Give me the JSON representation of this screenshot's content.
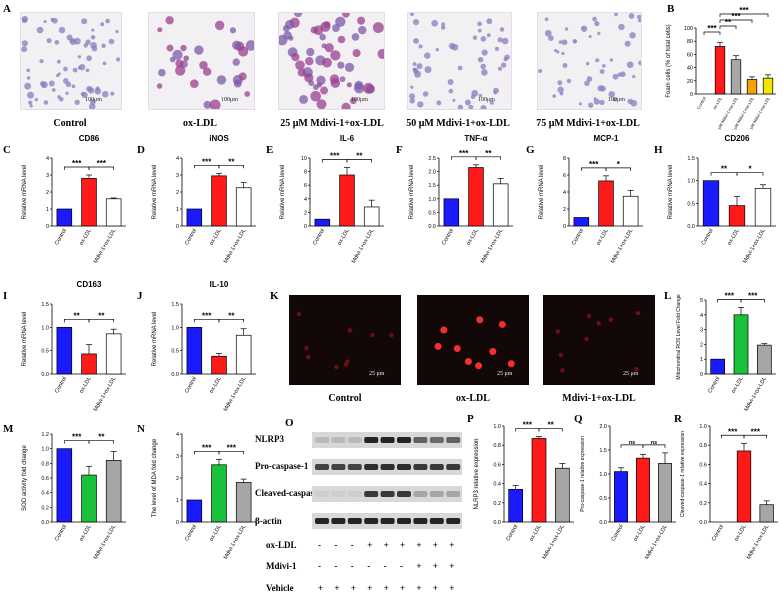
{
  "panel_letters": {
    "A": "A",
    "B": "B",
    "C": "C",
    "D": "D",
    "E": "E",
    "F": "F",
    "G": "G",
    "H": "H",
    "I": "I",
    "J": "J",
    "K": "K",
    "L": "L",
    "M": "M",
    "N": "N",
    "O": "O",
    "P": "P",
    "Q": "Q",
    "R": "R"
  },
  "micrographs": {
    "scale_label": "100μm",
    "captions": [
      "Control",
      "ox-LDL",
      "25 μM Mdivi-1+ox-LDL",
      "50 μM Mdivi-1+ox-LDL",
      "75 μM Mdivi-1+ox-LDL"
    ]
  },
  "fluorescence": {
    "scale_label": "25 μm",
    "captions": [
      "Control",
      "ox-LDL",
      "Mdivi-1+ox-LDL"
    ]
  },
  "western": {
    "bands": [
      "NLRP3",
      "Pro-caspase-1",
      "Cleaved-caspase-1",
      "β-actin"
    ],
    "treatment_rows": [
      {
        "label": "ox-LDL",
        "signs": [
          "-",
          "-",
          "-",
          "+",
          "+",
          "+",
          "+",
          "+",
          "+"
        ]
      },
      {
        "label": "Mdivi-1",
        "signs": [
          "-",
          "-",
          "-",
          "-",
          "-",
          "-",
          "+",
          "+",
          "+"
        ]
      },
      {
        "label": "Vehicle",
        "signs": [
          "+",
          "+",
          "+",
          "+",
          "+",
          "+",
          "+",
          "+",
          "+"
        ]
      }
    ]
  },
  "colors": {
    "blue": "#1a1aff",
    "red": "#ff1a1a",
    "gray": "#a6a6a6",
    "white": "#ffffff",
    "green": "#19c23a",
    "orange": "#f4a300",
    "yellow": "#f2e600",
    "darkred": "#cc2222"
  },
  "chart_data": [
    {
      "id": "B",
      "type": "bar",
      "ylabel": "Foam cells (% of total cells)",
      "ylim": [
        0,
        100
      ],
      "yticks": [
        "0",
        "20",
        "40",
        "60",
        "80",
        "100"
      ],
      "categories": [
        "Control",
        "ox-LDL",
        "25 μM Mdivi-1+ox-LDL",
        "50 μM Mdivi-1+ox-LDL",
        "75 μM Mdivi-1+ox-LDL"
      ],
      "values": [
        0,
        72,
        52,
        22,
        24
      ],
      "errors": [
        0,
        6,
        6,
        4,
        5
      ],
      "colors": [
        "#1a1aff",
        "#ff1a1a",
        "#a6a6a6",
        "#f4a300",
        "#f2e600"
      ],
      "sig": [
        {
          "a": 1,
          "b": 4,
          "t": "***"
        },
        {
          "a": 1,
          "b": 3,
          "t": "***"
        },
        {
          "a": 1,
          "b": 2,
          "t": "**"
        },
        {
          "a": 0,
          "b": 1,
          "t": "***"
        }
      ]
    },
    {
      "id": "C",
      "type": "bar",
      "title": "CD86",
      "ylabel": "Relative mRNA level",
      "ylim": [
        0,
        4
      ],
      "yticks": [
        "0",
        "1",
        "2",
        "3",
        "4"
      ],
      "categories": [
        "Control",
        "ox-LDL",
        "Mdivi-1+ox-LDL"
      ],
      "values": [
        1,
        2.8,
        1.6
      ],
      "errors": [
        0,
        0.2,
        0.05
      ],
      "colors": [
        "#1a1aff",
        "#ff1a1a",
        "#ffffff"
      ],
      "sig": [
        {
          "a": 0,
          "b": 1,
          "t": "***"
        },
        {
          "a": 1,
          "b": 2,
          "t": "***"
        }
      ]
    },
    {
      "id": "D",
      "type": "bar",
      "title": "iNOS",
      "ylabel": "Relative mRNA level",
      "ylim": [
        0,
        4
      ],
      "yticks": [
        "0",
        "1",
        "2",
        "3",
        "4"
      ],
      "categories": [
        "Control",
        "ox-LDL",
        "Mdivi-1+ox-LDL"
      ],
      "values": [
        1,
        2.95,
        2.25
      ],
      "errors": [
        0,
        0.15,
        0.3
      ],
      "colors": [
        "#1a1aff",
        "#ff1a1a",
        "#ffffff"
      ],
      "sig": [
        {
          "a": 0,
          "b": 1,
          "t": "***"
        },
        {
          "a": 1,
          "b": 2,
          "t": "**"
        }
      ]
    },
    {
      "id": "E",
      "type": "bar",
      "title": "IL-6",
      "ylabel": "Relative mRNA level",
      "ylim": [
        0,
        10
      ],
      "yticks": [
        "0",
        "2",
        "4",
        "6",
        "8",
        "10"
      ],
      "categories": [
        "Control",
        "ox-LDL",
        "Mdivi-1+ox-LDL"
      ],
      "values": [
        1,
        7.5,
        2.8
      ],
      "errors": [
        0,
        1.1,
        1.0
      ],
      "colors": [
        "#1a1aff",
        "#ff1a1a",
        "#ffffff"
      ],
      "sig": [
        {
          "a": 0,
          "b": 1,
          "t": "***"
        },
        {
          "a": 1,
          "b": 2,
          "t": "**"
        }
      ]
    },
    {
      "id": "F",
      "type": "bar",
      "title": "TNF-α",
      "ylabel": "Relative mRNA level",
      "ylim": [
        0,
        2.5
      ],
      "yticks": [
        "0.0",
        "0.5",
        "1.0",
        "1.5",
        "2.0",
        "2.5"
      ],
      "categories": [
        "Control",
        "ox-LDL",
        "Mdivi-1+ox-LDL"
      ],
      "values": [
        1,
        2.15,
        1.55
      ],
      "errors": [
        0,
        0.1,
        0.2
      ],
      "colors": [
        "#1a1aff",
        "#ff1a1a",
        "#ffffff"
      ],
      "sig": [
        {
          "a": 0,
          "b": 1,
          "t": "***"
        },
        {
          "a": 1,
          "b": 2,
          "t": "**"
        }
      ]
    },
    {
      "id": "G",
      "type": "bar",
      "title": "MCP-1",
      "ylabel": "Relative mRNA level",
      "ylim": [
        0,
        8
      ],
      "yticks": [
        "0",
        "2",
        "4",
        "6",
        "8"
      ],
      "categories": [
        "Control",
        "ox-LDL",
        "Mdivi-1+ox-LDL"
      ],
      "values": [
        1,
        5.3,
        3.5
      ],
      "errors": [
        0,
        0.6,
        0.7
      ],
      "colors": [
        "#1a1aff",
        "#ff1a1a",
        "#ffffff"
      ],
      "sig": [
        {
          "a": 0,
          "b": 1,
          "t": "***"
        },
        {
          "a": 1,
          "b": 2,
          "t": "*"
        }
      ]
    },
    {
      "id": "H",
      "type": "bar",
      "title": "CD206",
      "ylabel": "Relative mRNA level",
      "ylim": [
        0,
        1.5
      ],
      "yticks": [
        "0.0",
        "0.5",
        "1.0",
        "1.5"
      ],
      "categories": [
        "Control",
        "ox-LDL",
        "Mdivi-1+ox-LDL"
      ],
      "values": [
        1,
        0.45,
        0.83
      ],
      "errors": [
        0,
        0.2,
        0.08
      ],
      "colors": [
        "#1a1aff",
        "#ff1a1a",
        "#ffffff"
      ],
      "sig": [
        {
          "a": 0,
          "b": 1,
          "t": "**"
        },
        {
          "a": 1,
          "b": 2,
          "t": "*"
        }
      ]
    },
    {
      "id": "I",
      "type": "bar",
      "title": "CD163",
      "ylabel": "Relative mRNA level",
      "ylim": [
        0,
        1.5
      ],
      "yticks": [
        "0.0",
        "0.5",
        "1.0",
        "1.5"
      ],
      "categories": [
        "Control",
        "ox-LDL",
        "Mdivi-1+ox-LDL"
      ],
      "values": [
        1,
        0.43,
        0.86
      ],
      "errors": [
        0,
        0.2,
        0.1
      ],
      "colors": [
        "#1a1aff",
        "#ff1a1a",
        "#ffffff"
      ],
      "sig": [
        {
          "a": 0,
          "b": 1,
          "t": "**"
        },
        {
          "a": 1,
          "b": 2,
          "t": "**"
        }
      ]
    },
    {
      "id": "J",
      "type": "bar",
      "title": "IL-10",
      "ylabel": "Relative mRNA level",
      "ylim": [
        0,
        1.5
      ],
      "yticks": [
        "0.0",
        "0.5",
        "1.0",
        "1.5"
      ],
      "categories": [
        "Control",
        "ox-LDL",
        "Mdivi-1+ox-LDL"
      ],
      "values": [
        1,
        0.38,
        0.83
      ],
      "errors": [
        0,
        0.06,
        0.14
      ],
      "colors": [
        "#1a1aff",
        "#ff1a1a",
        "#ffffff"
      ],
      "sig": [
        {
          "a": 0,
          "b": 1,
          "t": "***"
        },
        {
          "a": 1,
          "b": 2,
          "t": "**"
        }
      ]
    },
    {
      "id": "L",
      "type": "bar",
      "ylabel": "Mitochondrial ROS Level Fold Change",
      "ylim": [
        0,
        5
      ],
      "yticks": [
        "0",
        "1",
        "2",
        "3",
        "4",
        "5"
      ],
      "categories": [
        "Control",
        "ox-LDL",
        "Mdivi-1+ox-LDL"
      ],
      "values": [
        1,
        4.0,
        1.95
      ],
      "errors": [
        0,
        0.5,
        0.1
      ],
      "colors": [
        "#1a1aff",
        "#19c23a",
        "#a6a6a6"
      ],
      "sig": [
        {
          "a": 0,
          "b": 1,
          "t": "***"
        },
        {
          "a": 1,
          "b": 2,
          "t": "***"
        }
      ]
    },
    {
      "id": "M",
      "type": "bar",
      "ylabel": "SOD activity fold change",
      "ylim": [
        0,
        1.2
      ],
      "yticks": [
        "0.0",
        "0.2",
        "0.4",
        "0.6",
        "0.8",
        "1.0",
        "1.2"
      ],
      "categories": [
        "Control",
        "ox-LDL",
        "Mdivi-1+ox-LDL"
      ],
      "values": [
        1,
        0.64,
        0.84
      ],
      "errors": [
        0,
        0.12,
        0.12
      ],
      "colors": [
        "#1a1aff",
        "#19c23a",
        "#a6a6a6"
      ],
      "sig": [
        {
          "a": 0,
          "b": 1,
          "t": "***"
        },
        {
          "a": 1,
          "b": 2,
          "t": "**"
        }
      ]
    },
    {
      "id": "N",
      "type": "bar",
      "ylabel": "The level of MDA fold change",
      "ylim": [
        0,
        4
      ],
      "yticks": [
        "0",
        "1",
        "2",
        "3",
        "4"
      ],
      "categories": [
        "Control",
        "ox-LDL",
        "Mdivi-1+ox-LDL"
      ],
      "values": [
        1,
        2.6,
        1.8
      ],
      "errors": [
        0,
        0.25,
        0.15
      ],
      "colors": [
        "#1a1aff",
        "#19c23a",
        "#a6a6a6"
      ],
      "sig": [
        {
          "a": 0,
          "b": 1,
          "t": "***"
        },
        {
          "a": 1,
          "b": 2,
          "t": "***"
        }
      ]
    },
    {
      "id": "P",
      "type": "bar",
      "ylabel": "NLRP3 relative expression",
      "ylim": [
        0,
        1.0
      ],
      "yticks": [
        "0.0",
        "0.2",
        "0.4",
        "0.6",
        "0.8",
        "1.0"
      ],
      "categories": [
        "Control",
        "ox-LDL",
        "Mdivi-1+ox-LDL"
      ],
      "values": [
        0.34,
        0.87,
        0.56
      ],
      "errors": [
        0.04,
        0.02,
        0.05
      ],
      "colors": [
        "#1a1aff",
        "#ff1a1a",
        "#a6a6a6"
      ],
      "sig": [
        {
          "a": 0,
          "b": 1,
          "t": "***"
        },
        {
          "a": 1,
          "b": 2,
          "t": "**"
        }
      ]
    },
    {
      "id": "Q",
      "type": "bar",
      "ylabel": "Pro-caspase-1 relative expression",
      "ylim": [
        0,
        2.0
      ],
      "yticks": [
        "0.0",
        "0.5",
        "1.0",
        "1.5",
        "2.0"
      ],
      "categories": [
        "Control",
        "ox-LDL",
        "Mdivi-1+ox-LDL"
      ],
      "values": [
        1.05,
        1.33,
        1.22
      ],
      "errors": [
        0.08,
        0.08,
        0.22
      ],
      "colors": [
        "#1a1aff",
        "#ff1a1a",
        "#a6a6a6"
      ],
      "sig": [
        {
          "a": 0,
          "b": 1,
          "t": "ns"
        },
        {
          "a": 1,
          "b": 2,
          "t": "ns"
        }
      ]
    },
    {
      "id": "R",
      "type": "bar",
      "ylabel": "Cleaved-caspase-1 relative expression",
      "ylim": [
        0,
        1.0
      ],
      "yticks": [
        "0.0",
        "0.2",
        "0.4",
        "0.6",
        "0.8",
        "1.0"
      ],
      "categories": [
        "Control",
        "ox-LDL",
        "Mdivi-1+ox-LDL"
      ],
      "values": [
        0,
        0.74,
        0.18
      ],
      "errors": [
        0,
        0.08,
        0.04
      ],
      "colors": [
        "#1a1aff",
        "#ff1a1a",
        "#a6a6a6"
      ],
      "sig": [
        {
          "a": 0,
          "b": 1,
          "t": "***"
        },
        {
          "a": 1,
          "b": 2,
          "t": "***"
        }
      ]
    }
  ]
}
